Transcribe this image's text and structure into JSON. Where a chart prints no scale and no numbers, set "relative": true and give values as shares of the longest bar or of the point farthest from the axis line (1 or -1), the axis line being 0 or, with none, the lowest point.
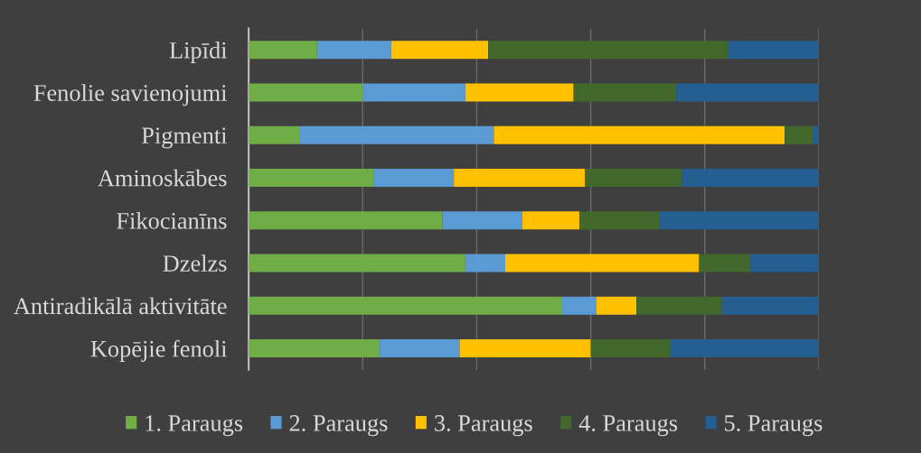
{
  "chart_data": {
    "type": "bar",
    "orientation": "horizontal",
    "stacked": true,
    "relative": true,
    "categories": [
      "Lipīdi",
      "Fenolie savienojumi",
      "Pigmenti",
      "Aminoskābes",
      "Fikocianīns",
      "Dzelzs",
      "Antiradikālā aktivitāte",
      "Kopējie fenoli"
    ],
    "series": [
      {
        "name": "1. Paraugs",
        "color": "#70ad47",
        "values": [
          0.12,
          0.2,
          0.09,
          0.22,
          0.34,
          0.38,
          0.55,
          0.23
        ]
      },
      {
        "name": "2. Paraugs",
        "color": "#5b9bd5",
        "values": [
          0.13,
          0.18,
          0.34,
          0.14,
          0.14,
          0.07,
          0.06,
          0.14
        ]
      },
      {
        "name": "3. Paraugs",
        "color": "#ffc000",
        "values": [
          0.17,
          0.19,
          0.51,
          0.23,
          0.1,
          0.34,
          0.07,
          0.23
        ]
      },
      {
        "name": "4. Paraugs",
        "color": "#43682b",
        "values": [
          0.42,
          0.18,
          0.05,
          0.17,
          0.14,
          0.09,
          0.15,
          0.14
        ]
      },
      {
        "name": "5. Paraugs",
        "color": "#255e91",
        "values": [
          0.16,
          0.25,
          0.01,
          0.24,
          0.28,
          0.12,
          0.17,
          0.26
        ]
      }
    ],
    "grid": "x",
    "legend": "bottom"
  }
}
